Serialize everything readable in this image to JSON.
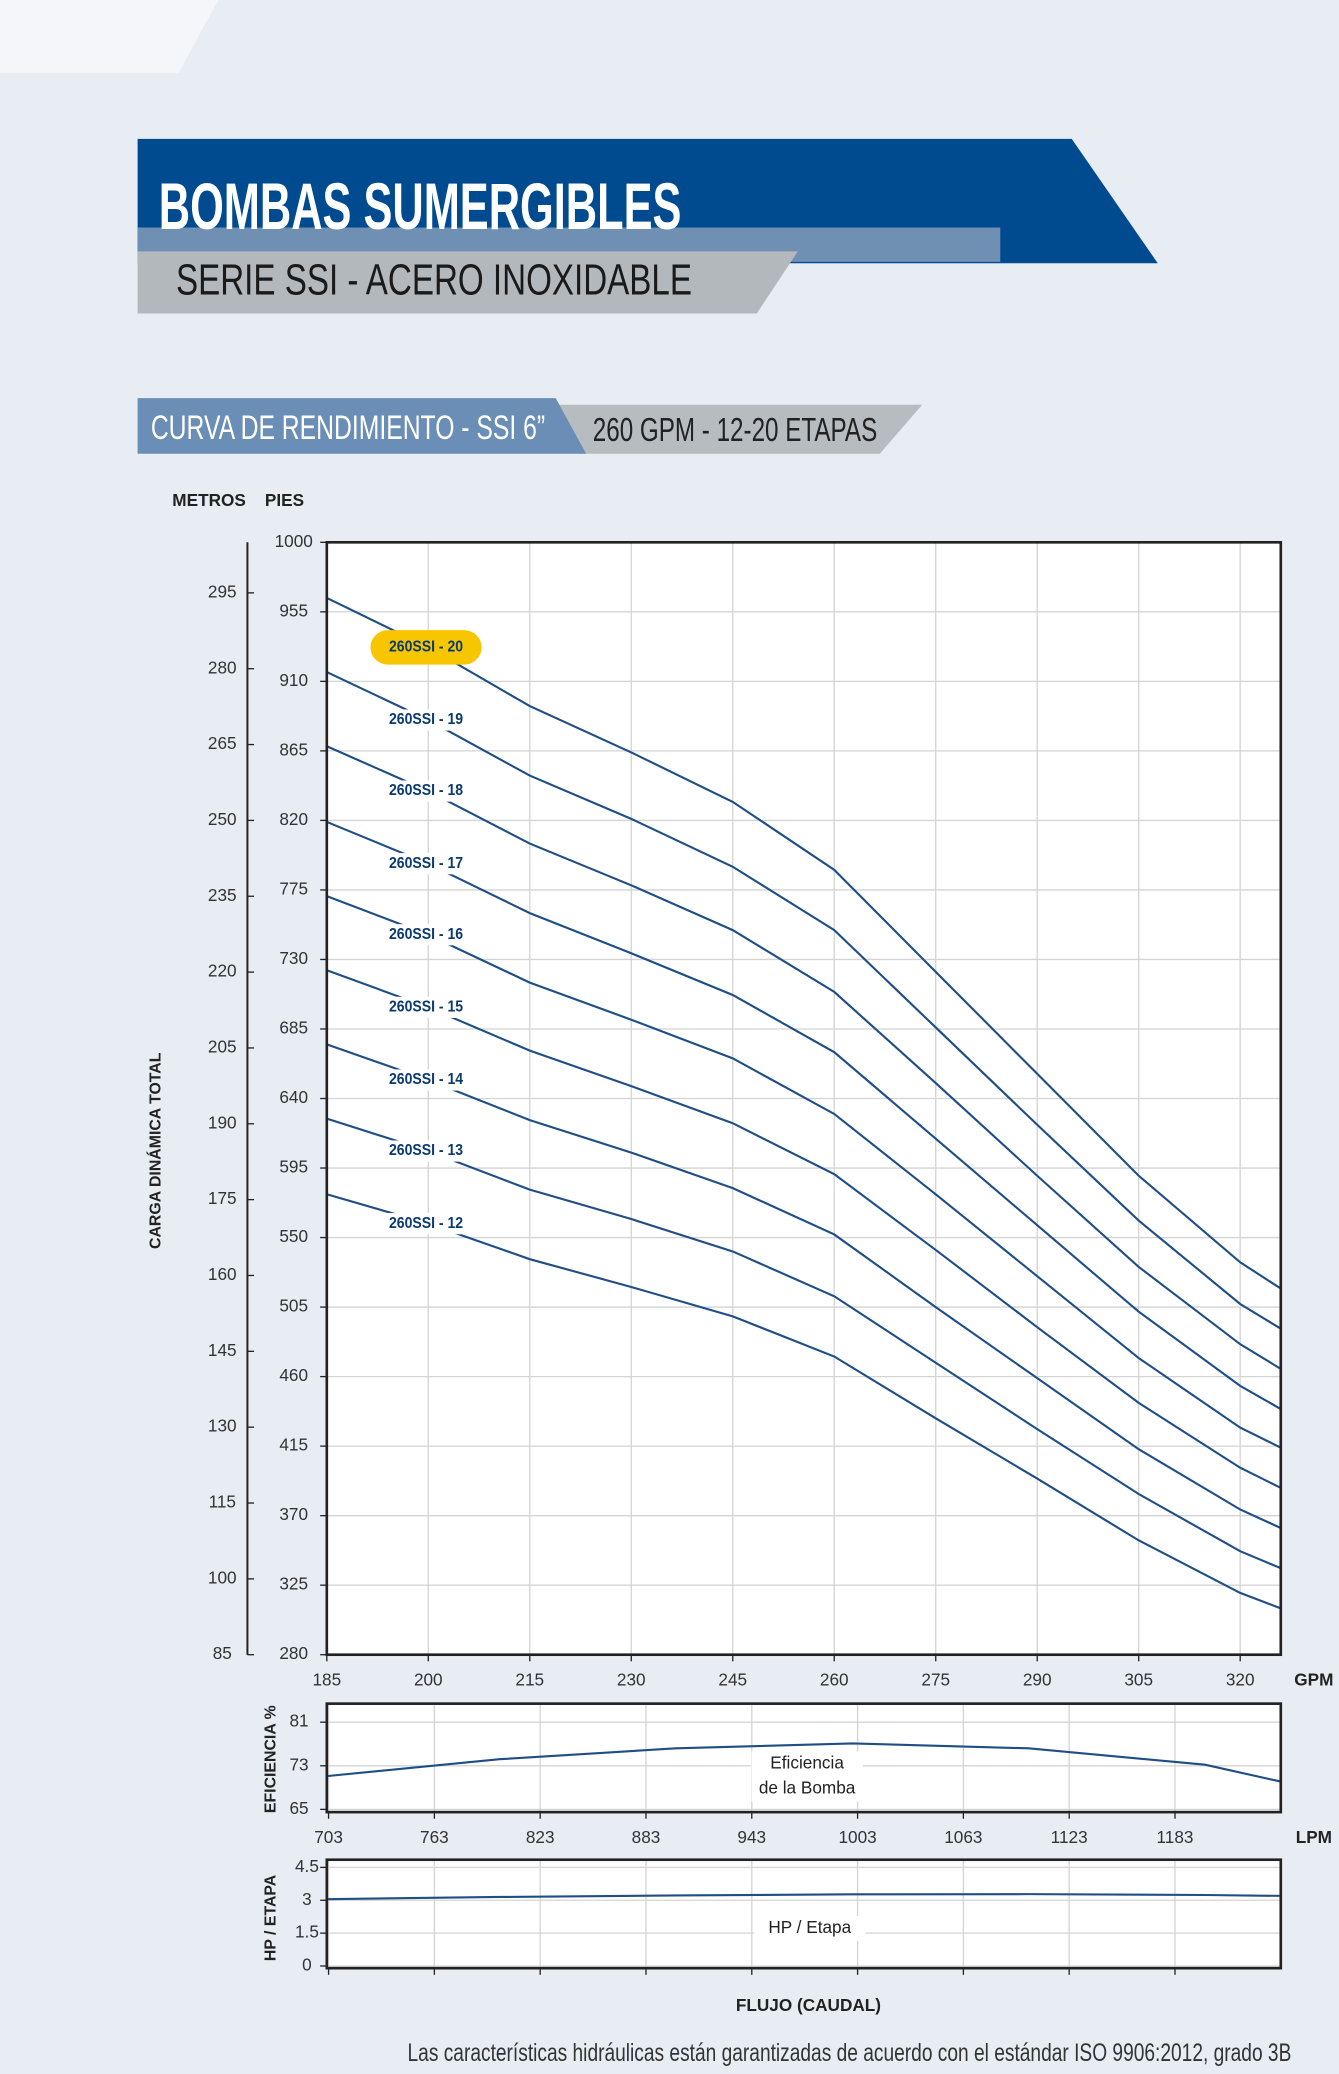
{
  "header": {
    "title": "BOMBAS SUMERGIBLES",
    "subtitle": "SERIE SSI - ACERO INOXIDABLE"
  },
  "section": {
    "title": "CURVA DE RENDIMIENTO - SSI 6”",
    "tag": "260 GPM - 12-20 ETAPAS"
  },
  "footer": "Las características hidráulicas están garantizadas de acuerdo con el estándar ISO 9906:2012, grado 3B",
  "chart_data": [
    {
      "type": "line",
      "ylabel": "CARGA DINÁMICA TOTAL",
      "yunit": "PIES",
      "y2unit": "METROS",
      "xunit": "GPM",
      "x": [
        185,
        200,
        215,
        230,
        245,
        260,
        275,
        290,
        305,
        320,
        326
      ],
      "xlim": [
        185,
        326
      ],
      "xticks": [
        185,
        200,
        215,
        230,
        245,
        260,
        275,
        290,
        305,
        320
      ],
      "ylim": [
        280,
        1000
      ],
      "yticks": [
        280,
        325,
        370,
        415,
        460,
        505,
        550,
        595,
        640,
        685,
        730,
        775,
        820,
        865,
        910,
        955,
        1000
      ],
      "y2lim": [
        85,
        305
      ],
      "y2ticks": [
        85,
        100,
        115,
        130,
        145,
        160,
        175,
        190,
        205,
        220,
        235,
        250,
        265,
        280,
        295
      ],
      "grid": true,
      "series": [
        {
          "name": "260SSI - 20",
          "color": "#1f4e86",
          "label_background": "#f7c600",
          "values": [
            964,
            932,
            894,
            864,
            832,
            788,
            722,
            656,
            590,
            534,
            517
          ]
        },
        {
          "name": "260SSI - 19",
          "color": "#1f4e86",
          "values": [
            916,
            885,
            849,
            821,
            790,
            749,
            686,
            623,
            561,
            507,
            491
          ]
        },
        {
          "name": "260SSI - 18",
          "color": "#1f4e86",
          "values": [
            868,
            839,
            805,
            778,
            749,
            709,
            650,
            590,
            531,
            481,
            465
          ]
        },
        {
          "name": "260SSI - 17",
          "color": "#1f4e86",
          "values": [
            819,
            792,
            760,
            734,
            707,
            670,
            614,
            558,
            502,
            454,
            439
          ]
        },
        {
          "name": "260SSI - 16",
          "color": "#1f4e86",
          "values": [
            771,
            746,
            715,
            691,
            666,
            630,
            578,
            525,
            472,
            427,
            414
          ]
        },
        {
          "name": "260SSI - 15",
          "color": "#1f4e86",
          "values": [
            723,
            699,
            671,
            648,
            624,
            591,
            542,
            492,
            443,
            401,
            388
          ]
        },
        {
          "name": "260SSI - 14",
          "color": "#1f4e86",
          "values": [
            675,
            652,
            626,
            605,
            582,
            552,
            505,
            459,
            413,
            374,
            362
          ]
        },
        {
          "name": "260SSI - 13",
          "color": "#1f4e86",
          "values": [
            627,
            606,
            581,
            562,
            541,
            512,
            469,
            426,
            384,
            347,
            336
          ]
        },
        {
          "name": "260SSI - 12",
          "color": "#1f4e86",
          "values": [
            578,
            559,
            536,
            518,
            499,
            473,
            433,
            394,
            354,
            320,
            310
          ]
        }
      ]
    },
    {
      "type": "line",
      "ylabel": "EFICIENCIA %",
      "xunit": "LPM",
      "x": [
        702,
        800,
        900,
        1000,
        1100,
        1200,
        1243
      ],
      "xlim": [
        702,
        1243
      ],
      "xticks": [
        703,
        763,
        823,
        883,
        943,
        1003,
        1063,
        1123,
        1183
      ],
      "ylim": [
        64.5,
        84.4
      ],
      "yticks": [
        65,
        73,
        81
      ],
      "grid": true,
      "annotation": [
        "Eficiencia",
        "de la Bomba"
      ],
      "series": [
        {
          "color": "#1f4e86",
          "values": [
            71.1,
            74.2,
            76.2,
            77.1,
            76.2,
            73.2,
            70.1
          ]
        }
      ]
    },
    {
      "type": "line",
      "ylabel": "HP / ETAPA",
      "xlabel": "FLUJO (CAUDAL)",
      "x": [
        702,
        800,
        900,
        1000,
        1100,
        1200,
        1243
      ],
      "xlim": [
        702,
        1243
      ],
      "xticks": [
        703,
        763,
        823,
        883,
        943,
        1003,
        1063,
        1123,
        1183
      ],
      "ylim": [
        -0.1,
        4.85
      ],
      "yticks": [
        0,
        1.5,
        3,
        4.5
      ],
      "grid": true,
      "annotation": [
        "HP / Etapa"
      ],
      "series": [
        {
          "color": "#1f4e86",
          "values": [
            3.05,
            3.15,
            3.22,
            3.27,
            3.28,
            3.24,
            3.2
          ]
        }
      ]
    }
  ]
}
